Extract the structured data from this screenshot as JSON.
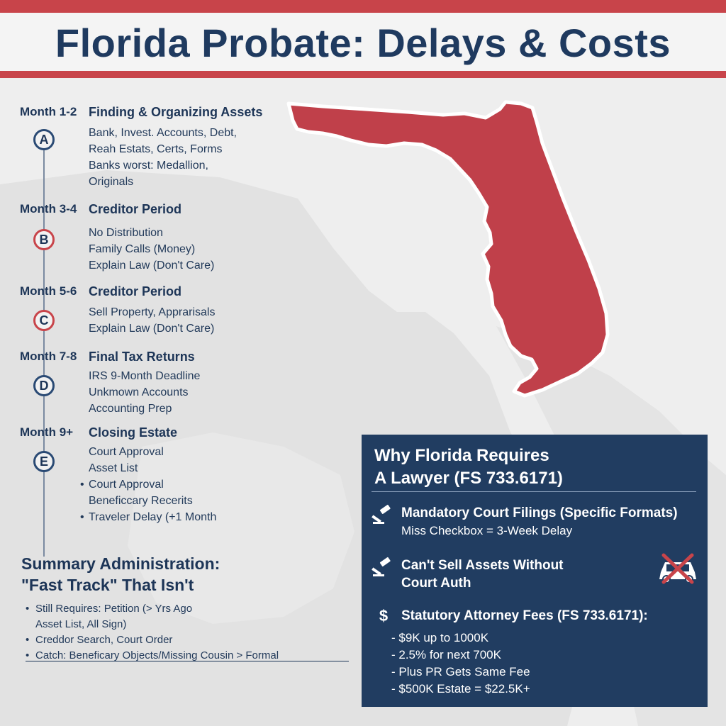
{
  "title": "Florida Probate: Delays & Costs",
  "colors": {
    "accent_red": "#c8444a",
    "navy": "#213d61",
    "map_red": "#c0404a",
    "background": "#eeeeee"
  },
  "timeline": [
    {
      "month": "Month 1-2",
      "letter": "A",
      "title": "Finding & Organizing Assets",
      "lines": [
        "Bank, Invest. Accounts, Debt,",
        "Reah Estats, Certs, Forms",
        "Banks worst: Medallion,",
        "Originals"
      ]
    },
    {
      "month": "Month 3-4",
      "letter": "B",
      "title": "Creditor Period",
      "lines": [
        "No Distribution",
        "Family Calls (Money)",
        "Explain Law (Don't Care)"
      ]
    },
    {
      "month": "Month 5-6",
      "letter": "C",
      "title": "Creditor Period",
      "lines": [
        "Sell Property, Apprarisals",
        "Explain Law (Don't Care)"
      ]
    },
    {
      "month": "Month 7-8",
      "letter": "D",
      "title": "Final Tax Returns",
      "lines": [
        "IRS 9-Month Deadline",
        "Unkmown Accounts",
        "Accounting Prep"
      ]
    },
    {
      "month": "Month 9+",
      "letter": "E",
      "title": "Closing Estate",
      "lines": [
        "Court Approval",
        "Asset List",
        "Court Approval",
        "Beneficcary Recerits",
        "Traveler Delay (+1 Month"
      ]
    }
  ],
  "summary": {
    "title_line1": "Summary Administration:",
    "title_line2": "\"Fast Track\" That Isn't",
    "items": [
      "Still Requires: Petition (> Yrs Ago",
      "Asset List, All Sign)",
      "Creddor Search, Court Order",
      "Catch: Beneficary Objects/Missing Cousin > Formal"
    ]
  },
  "why_box": {
    "title_line1": "Why Florida Requires",
    "title_line2": "A Lawyer (FS 733.6171)",
    "items": [
      {
        "icon": "gavel-icon",
        "head": "Mandatory Court Filings (Specific Formats)",
        "sub": "Miss Checkbox = 3-Week Delay"
      },
      {
        "icon": "gavel-icon",
        "head_line1": "Can't Sell Assets Without",
        "head_line2": "Court Auth",
        "side_icon": "crossed-car-icon"
      },
      {
        "icon": "dollar-icon",
        "icon_glyph": "$",
        "head": "Statutory Attorney Fees (FS 733.6171):",
        "fees": [
          "- $9K up to 1000K",
          "- 2.5% for next 700K",
          "- Plus PR Gets Same Fee",
          "- $500K Estate = $22.5K+"
        ]
      }
    ]
  }
}
